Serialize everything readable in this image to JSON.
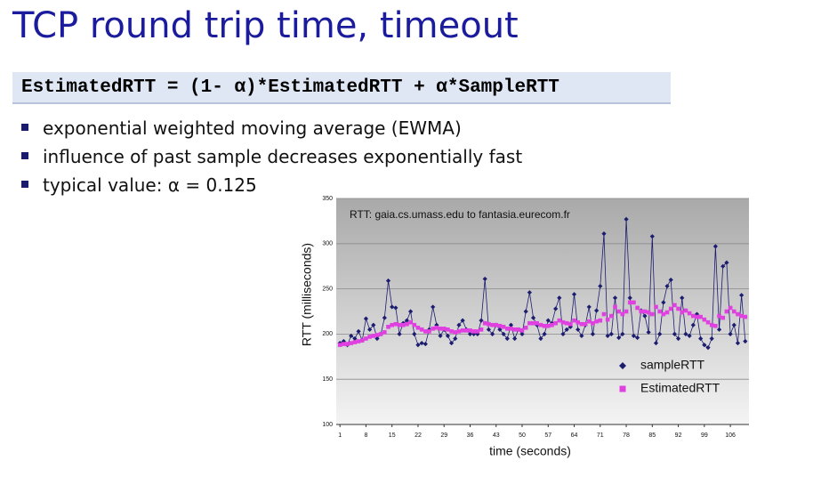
{
  "title": "TCP round trip time, timeout",
  "formula": "EstimatedRTT = (1- α)*EstimatedRTT + α*SampleRTT",
  "bullets": [
    "exponential weighted moving average (EWMA)",
    "influence of past sample decreases exponentially fast",
    "typical value: α = 0.125"
  ],
  "chart_data": {
    "type": "line",
    "annotation": "RTT: gaia.cs.umass.edu to fantasia.eurecom.fr",
    "x_label": "time (seconds)",
    "y_label": "RTT (milliseconds)",
    "x": [
      1,
      2,
      3,
      4,
      5,
      6,
      7,
      8,
      9,
      10,
      11,
      12,
      13,
      14,
      15,
      16,
      17,
      18,
      19,
      20,
      21,
      22,
      23,
      24,
      25,
      26,
      27,
      28,
      29,
      30,
      31,
      32,
      33,
      34,
      35,
      36,
      37,
      38,
      39,
      40,
      41,
      42,
      43,
      44,
      45,
      46,
      47,
      48,
      49,
      50,
      51,
      52,
      53,
      54,
      55,
      56,
      57,
      58,
      59,
      60,
      61,
      62,
      63,
      64,
      65,
      66,
      67,
      68,
      69,
      70,
      71,
      72,
      73,
      74,
      75,
      76,
      77,
      78,
      79,
      80,
      81,
      82,
      83,
      84,
      85,
      86,
      87,
      88,
      89,
      90,
      91,
      92,
      93,
      94,
      95,
      96,
      97,
      98,
      99,
      100,
      101,
      102,
      103,
      104,
      105,
      106,
      107,
      108,
      109,
      110
    ],
    "xlim": [
      0,
      111
    ],
    "xticks": [
      1,
      8,
      15,
      22,
      29,
      36,
      43,
      50,
      57,
      64,
      71,
      78,
      85,
      92,
      99,
      106
    ],
    "ylim": [
      100,
      350
    ],
    "yticks": [
      100,
      150,
      200,
      250,
      300,
      350
    ],
    "grid": true,
    "legend": "lower right",
    "series": [
      {
        "name": "sampleRTT",
        "color": "#1c1c70",
        "marker": "diamond",
        "values": [
          190,
          192,
          188,
          198,
          195,
          203,
          193,
          217,
          205,
          210,
          195,
          200,
          218,
          259,
          230,
          229,
          200,
          212,
          215,
          225,
          200,
          188,
          190,
          189,
          205,
          230,
          210,
          198,
          205,
          198,
          190,
          195,
          210,
          215,
          205,
          200,
          200,
          200,
          215,
          261,
          205,
          200,
          210,
          205,
          200,
          195,
          210,
          195,
          205,
          200,
          225,
          246,
          218,
          210,
          195,
          200,
          215,
          212,
          228,
          240,
          200,
          205,
          208,
          244,
          205,
          198,
          210,
          230,
          200,
          226,
          253,
          311,
          198,
          200,
          240,
          196,
          200,
          327,
          240,
          198,
          196,
          226,
          220,
          202,
          308,
          190,
          200,
          235,
          253,
          260,
          200,
          195,
          240,
          200,
          198,
          210,
          222,
          195,
          188,
          185,
          195,
          297,
          205,
          275,
          279,
          200,
          210,
          190,
          243,
          192
        ]
      },
      {
        "name": "EstimatedRTT",
        "color": "#e040e0",
        "marker": "square",
        "values": [
          188,
          189,
          189,
          190,
          191,
          192,
          193,
          195,
          197,
          198,
          199,
          200,
          202,
          208,
          210,
          211,
          210,
          210,
          211,
          213,
          210,
          207,
          205,
          203,
          203,
          206,
          207,
          206,
          206,
          205,
          203,
          202,
          203,
          204,
          204,
          204,
          203,
          203,
          205,
          212,
          211,
          210,
          210,
          209,
          208,
          206,
          206,
          205,
          205,
          204,
          207,
          212,
          212,
          212,
          210,
          209,
          209,
          210,
          212,
          215,
          213,
          212,
          211,
          215,
          213,
          211,
          211,
          214,
          212,
          214,
          215,
          222,
          216,
          220,
          230,
          225,
          222,
          225,
          235,
          235,
          229,
          225,
          225,
          224,
          222,
          230,
          225,
          222,
          224,
          228,
          232,
          228,
          224,
          226,
          223,
          220,
          219,
          219,
          216,
          213,
          210,
          209,
          220,
          218,
          225,
          229,
          225,
          222,
          220,
          219
        ]
      }
    ]
  }
}
